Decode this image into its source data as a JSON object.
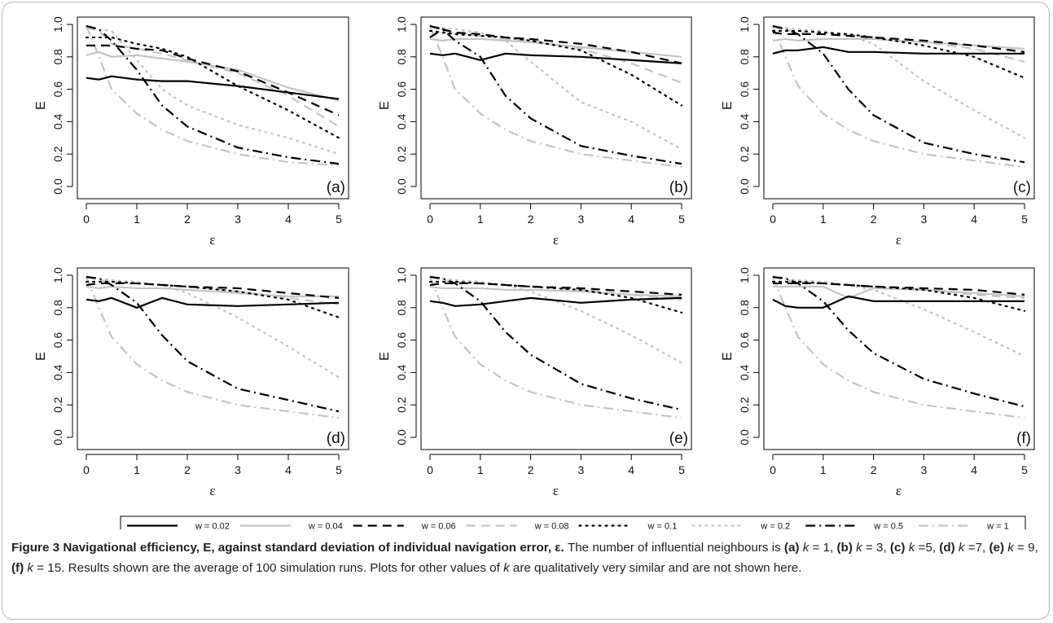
{
  "figure_label": "Figure 3",
  "figure_title": "Navigational efficiency, E, against standard deviation of individual navigation error, ε.",
  "caption": {
    "intro": "The number of influential neighbours is",
    "panel_texts": [
      "(a)",
      "k",
      " = 1, ",
      "(b)",
      "k",
      " = 3, ",
      "(c)",
      "k",
      " =5, ",
      "(d)",
      "k",
      " =7, ",
      "(e)",
      "k",
      " = 9, ",
      "(f)",
      "k",
      " = 15."
    ],
    "rest": "Results shown are the average of 100 simulation runs. Plots for other values of",
    "rest_k": "k",
    "rest_end": "are qualitatively very similar and are not shown here."
  },
  "legend": [
    {
      "label": "w = 0.02",
      "color": "#000000",
      "dash": "solid"
    },
    {
      "label": "w = 0.04",
      "color": "#c4c4c4",
      "dash": "solid"
    },
    {
      "label": "w = 0.06",
      "color": "#000000",
      "dash": "dashed"
    },
    {
      "label": "w = 0.08",
      "color": "#c4c4c4",
      "dash": "dashed"
    },
    {
      "label": "w = 0.1",
      "color": "#000000",
      "dash": "dotted"
    },
    {
      "label": "w = 0.2",
      "color": "#c4c4c4",
      "dash": "dotted"
    },
    {
      "label": "w = 0.5",
      "color": "#000000",
      "dash": "dashdot"
    },
    {
      "label": "w = 1",
      "color": "#c4c4c4",
      "dash": "dashdot"
    }
  ],
  "chart_data": [
    {
      "type": "line",
      "panel": "(a)",
      "xlabel": "ε",
      "ylabel": "E",
      "xlim": [
        0,
        5
      ],
      "ylim": [
        0,
        1
      ],
      "xticks": [
        "0",
        "1",
        "2",
        "3",
        "4",
        "5"
      ],
      "yticks": [
        "0.0",
        "0.2",
        "0.4",
        "0.6",
        "0.8",
        "1.0"
      ],
      "x": [
        0,
        0.25,
        0.5,
        1,
        1.5,
        2,
        3,
        4,
        5
      ],
      "series": [
        {
          "name": "w = 0.02",
          "values": [
            0.67,
            0.66,
            0.68,
            0.66,
            0.65,
            0.65,
            0.62,
            0.58,
            0.54
          ]
        },
        {
          "name": "w = 0.04",
          "values": [
            0.81,
            0.83,
            0.8,
            0.81,
            0.79,
            0.77,
            0.72,
            0.61,
            0.53
          ]
        },
        {
          "name": "w = 0.06",
          "values": [
            0.87,
            0.87,
            0.87,
            0.85,
            0.84,
            0.79,
            0.71,
            0.58,
            0.44
          ]
        },
        {
          "name": "w = 0.08",
          "values": [
            0.98,
            0.96,
            0.88,
            0.85,
            0.82,
            0.78,
            0.7,
            0.56,
            0.37
          ]
        },
        {
          "name": "w = 0.1",
          "values": [
            0.92,
            0.92,
            0.92,
            0.88,
            0.85,
            0.8,
            0.62,
            0.47,
            0.3
          ]
        },
        {
          "name": "w = 0.2",
          "values": [
            0.98,
            0.97,
            0.96,
            0.78,
            0.6,
            0.5,
            0.38,
            0.3,
            0.2
          ]
        },
        {
          "name": "w = 0.5",
          "values": [
            0.99,
            0.97,
            0.9,
            0.72,
            0.5,
            0.37,
            0.24,
            0.18,
            0.14
          ]
        },
        {
          "name": "w = 1",
          "values": [
            0.99,
            0.8,
            0.6,
            0.45,
            0.35,
            0.28,
            0.2,
            0.15,
            0.13
          ]
        }
      ]
    },
    {
      "type": "line",
      "panel": "(b)",
      "xlabel": "ε",
      "ylabel": "E",
      "xlim": [
        0,
        5
      ],
      "ylim": [
        0,
        1
      ],
      "xticks": [
        "0",
        "1",
        "2",
        "3",
        "4",
        "5"
      ],
      "yticks": [
        "0.0",
        "0.2",
        "0.4",
        "0.6",
        "0.8",
        "1.0"
      ],
      "x": [
        0,
        0.25,
        0.5,
        1,
        1.5,
        2,
        3,
        4,
        5
      ],
      "series": [
        {
          "name": "w = 0.02",
          "values": [
            0.82,
            0.81,
            0.82,
            0.78,
            0.82,
            0.81,
            0.8,
            0.78,
            0.76
          ]
        },
        {
          "name": "w = 0.04",
          "values": [
            0.91,
            0.9,
            0.91,
            0.91,
            0.9,
            0.89,
            0.86,
            0.83,
            0.8
          ]
        },
        {
          "name": "w = 0.06",
          "values": [
            0.92,
            0.97,
            0.95,
            0.94,
            0.92,
            0.91,
            0.88,
            0.83,
            0.76
          ]
        },
        {
          "name": "w = 0.08",
          "values": [
            0.99,
            0.96,
            0.95,
            0.93,
            0.91,
            0.9,
            0.85,
            0.76,
            0.64
          ]
        },
        {
          "name": "w = 0.1",
          "values": [
            0.96,
            0.95,
            0.94,
            0.93,
            0.92,
            0.9,
            0.84,
            0.69,
            0.5
          ]
        },
        {
          "name": "w = 0.2",
          "values": [
            0.99,
            0.98,
            0.97,
            0.95,
            0.9,
            0.77,
            0.52,
            0.4,
            0.23
          ]
        },
        {
          "name": "w = 0.5",
          "values": [
            0.99,
            0.97,
            0.9,
            0.8,
            0.56,
            0.42,
            0.25,
            0.19,
            0.14
          ]
        },
        {
          "name": "w = 1",
          "values": [
            0.99,
            0.8,
            0.6,
            0.45,
            0.35,
            0.28,
            0.2,
            0.16,
            0.12
          ]
        }
      ]
    },
    {
      "type": "line",
      "panel": "(c)",
      "xlabel": "ε",
      "ylabel": "E",
      "xlim": [
        0,
        5
      ],
      "ylim": [
        0,
        1
      ],
      "xticks": [
        "0",
        "1",
        "2",
        "3",
        "4",
        "5"
      ],
      "yticks": [
        "0.0",
        "0.2",
        "0.4",
        "0.6",
        "0.8",
        "1.0"
      ],
      "x": [
        0,
        0.25,
        0.5,
        1,
        1.5,
        2,
        3,
        4,
        5
      ],
      "series": [
        {
          "name": "w = 0.02",
          "values": [
            0.82,
            0.84,
            0.84,
            0.86,
            0.83,
            0.83,
            0.82,
            0.82,
            0.82
          ]
        },
        {
          "name": "w = 0.04",
          "values": [
            0.9,
            0.91,
            0.9,
            0.91,
            0.91,
            0.91,
            0.89,
            0.87,
            0.85
          ]
        },
        {
          "name": "w = 0.06",
          "values": [
            0.95,
            0.94,
            0.94,
            0.94,
            0.93,
            0.92,
            0.9,
            0.87,
            0.83
          ]
        },
        {
          "name": "w = 0.08",
          "values": [
            0.99,
            0.97,
            0.95,
            0.94,
            0.93,
            0.91,
            0.89,
            0.85,
            0.77
          ]
        },
        {
          "name": "w = 0.1",
          "values": [
            0.96,
            0.96,
            0.96,
            0.95,
            0.94,
            0.92,
            0.87,
            0.8,
            0.67
          ]
        },
        {
          "name": "w = 0.2",
          "values": [
            0.99,
            0.98,
            0.97,
            0.96,
            0.93,
            0.88,
            0.65,
            0.47,
            0.3
          ]
        },
        {
          "name": "w = 0.5",
          "values": [
            0.99,
            0.97,
            0.94,
            0.82,
            0.6,
            0.44,
            0.27,
            0.2,
            0.15
          ]
        },
        {
          "name": "w = 1",
          "values": [
            0.99,
            0.8,
            0.62,
            0.45,
            0.35,
            0.28,
            0.2,
            0.16,
            0.12
          ]
        }
      ]
    },
    {
      "type": "line",
      "panel": "(d)",
      "xlabel": "ε",
      "ylabel": "E",
      "xlim": [
        0,
        5
      ],
      "ylim": [
        0,
        1
      ],
      "xticks": [
        "0",
        "1",
        "2",
        "3",
        "4",
        "5"
      ],
      "yticks": [
        "0.0",
        "0.2",
        "0.4",
        "0.6",
        "0.8",
        "1.0"
      ],
      "x": [
        0,
        0.25,
        0.5,
        1,
        1.5,
        2,
        3,
        4,
        5
      ],
      "series": [
        {
          "name": "w = 0.02",
          "values": [
            0.85,
            0.84,
            0.86,
            0.8,
            0.86,
            0.82,
            0.81,
            0.82,
            0.83
          ]
        },
        {
          "name": "w = 0.04",
          "values": [
            0.93,
            0.92,
            0.93,
            0.92,
            0.92,
            0.91,
            0.89,
            0.87,
            0.87
          ]
        },
        {
          "name": "w = 0.06",
          "values": [
            0.94,
            0.95,
            0.95,
            0.95,
            0.94,
            0.93,
            0.92,
            0.89,
            0.86
          ]
        },
        {
          "name": "w = 0.08",
          "values": [
            0.99,
            0.97,
            0.96,
            0.95,
            0.94,
            0.93,
            0.9,
            0.86,
            0.82
          ]
        },
        {
          "name": "w = 0.1",
          "values": [
            0.96,
            0.96,
            0.96,
            0.95,
            0.94,
            0.93,
            0.9,
            0.85,
            0.74
          ]
        },
        {
          "name": "w = 0.2",
          "values": [
            0.99,
            0.98,
            0.97,
            0.96,
            0.94,
            0.89,
            0.74,
            0.56,
            0.37
          ]
        },
        {
          "name": "w = 0.5",
          "values": [
            0.99,
            0.98,
            0.94,
            0.83,
            0.63,
            0.47,
            0.3,
            0.23,
            0.16
          ]
        },
        {
          "name": "w = 1",
          "values": [
            0.99,
            0.8,
            0.62,
            0.45,
            0.35,
            0.28,
            0.2,
            0.16,
            0.12
          ]
        }
      ]
    },
    {
      "type": "line",
      "panel": "(e)",
      "xlabel": "ε",
      "ylabel": "E",
      "xlim": [
        0,
        5
      ],
      "ylim": [
        0,
        1
      ],
      "xticks": [
        "0",
        "1",
        "2",
        "3",
        "4",
        "5"
      ],
      "yticks": [
        "0.0",
        "0.2",
        "0.4",
        "0.6",
        "0.8",
        "1.0"
      ],
      "x": [
        0,
        0.25,
        0.5,
        1,
        1.5,
        2,
        3,
        4,
        5
      ],
      "series": [
        {
          "name": "w = 0.02",
          "values": [
            0.84,
            0.83,
            0.81,
            0.82,
            0.84,
            0.86,
            0.83,
            0.85,
            0.86
          ]
        },
        {
          "name": "w = 0.04",
          "values": [
            0.93,
            0.92,
            0.92,
            0.92,
            0.91,
            0.91,
            0.9,
            0.88,
            0.87
          ]
        },
        {
          "name": "w = 0.06",
          "values": [
            0.94,
            0.95,
            0.95,
            0.95,
            0.94,
            0.93,
            0.92,
            0.9,
            0.88
          ]
        },
        {
          "name": "w = 0.08",
          "values": [
            0.99,
            0.97,
            0.96,
            0.95,
            0.94,
            0.93,
            0.91,
            0.88,
            0.85
          ]
        },
        {
          "name": "w = 0.1",
          "values": [
            0.96,
            0.96,
            0.96,
            0.95,
            0.94,
            0.93,
            0.91,
            0.86,
            0.77
          ]
        },
        {
          "name": "w = 0.2",
          "values": [
            0.99,
            0.98,
            0.97,
            0.96,
            0.94,
            0.9,
            0.78,
            0.63,
            0.46
          ]
        },
        {
          "name": "w = 0.5",
          "values": [
            0.99,
            0.98,
            0.95,
            0.84,
            0.65,
            0.51,
            0.33,
            0.24,
            0.17
          ]
        },
        {
          "name": "w = 1",
          "values": [
            0.99,
            0.8,
            0.62,
            0.45,
            0.35,
            0.28,
            0.2,
            0.16,
            0.12
          ]
        }
      ]
    },
    {
      "type": "line",
      "panel": "(f)",
      "xlabel": "ε",
      "ylabel": "E",
      "xlim": [
        0,
        5
      ],
      "ylim": [
        0,
        1
      ],
      "xticks": [
        "0",
        "1",
        "2",
        "3",
        "4",
        "5"
      ],
      "yticks": [
        "0.0",
        "0.2",
        "0.4",
        "0.6",
        "0.8",
        "1.0"
      ],
      "x": [
        0,
        0.25,
        0.5,
        1,
        1.5,
        2,
        3,
        4,
        5
      ],
      "series": [
        {
          "name": "w = 0.02",
          "values": [
            0.85,
            0.81,
            0.8,
            0.8,
            0.87,
            0.84,
            0.84,
            0.84,
            0.84
          ]
        },
        {
          "name": "w = 0.04",
          "values": [
            0.93,
            0.93,
            0.93,
            0.93,
            0.86,
            0.92,
            0.91,
            0.89,
            0.87
          ]
        },
        {
          "name": "w = 0.06",
          "values": [
            0.95,
            0.95,
            0.95,
            0.95,
            0.94,
            0.93,
            0.92,
            0.91,
            0.88
          ]
        },
        {
          "name": "w = 0.08",
          "values": [
            0.99,
            0.97,
            0.96,
            0.95,
            0.94,
            0.93,
            0.91,
            0.88,
            0.86
          ]
        },
        {
          "name": "w = 0.1",
          "values": [
            0.96,
            0.96,
            0.96,
            0.95,
            0.94,
            0.93,
            0.91,
            0.86,
            0.78
          ]
        },
        {
          "name": "w = 0.2",
          "values": [
            0.99,
            0.98,
            0.97,
            0.96,
            0.94,
            0.91,
            0.79,
            0.65,
            0.5
          ]
        },
        {
          "name": "w = 0.5",
          "values": [
            0.99,
            0.98,
            0.95,
            0.84,
            0.66,
            0.52,
            0.36,
            0.27,
            0.19
          ]
        },
        {
          "name": "w = 1",
          "values": [
            0.99,
            0.8,
            0.62,
            0.45,
            0.35,
            0.28,
            0.2,
            0.16,
            0.12
          ]
        }
      ]
    }
  ]
}
